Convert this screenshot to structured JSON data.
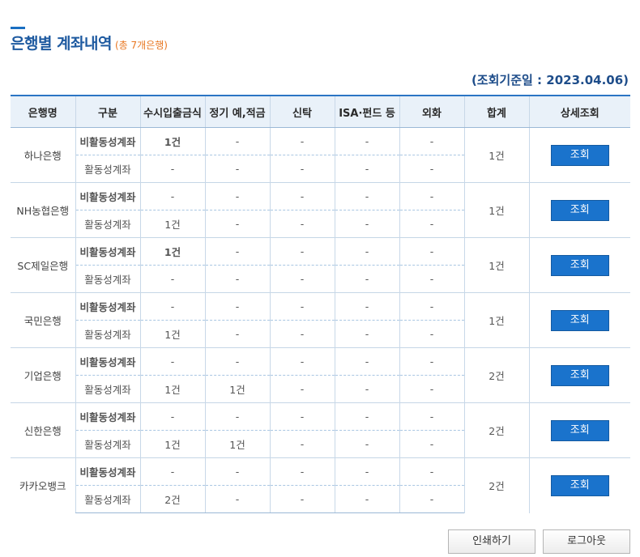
{
  "header": {
    "title": "은행별 계좌내역",
    "count_label": "(총 7개은행)",
    "basis_label": "(조회기준일 : 2023.04.06)"
  },
  "table": {
    "columns": [
      "은행명",
      "구분",
      "수시입출금식",
      "정기 예,적금",
      "신탁",
      "ISA·펀드 등",
      "외화",
      "합계",
      "상세조회"
    ],
    "button_label": "조회",
    "banks": [
      {
        "name": "하나은행",
        "total": "1건",
        "rows": [
          {
            "type": "비활동성계좌",
            "cells": [
              "1건",
              "-",
              "-",
              "-",
              "-"
            ]
          },
          {
            "type": "활동성계좌",
            "cells": [
              "-",
              "-",
              "-",
              "-",
              "-"
            ]
          }
        ]
      },
      {
        "name": "NH농협은행",
        "total": "1건",
        "rows": [
          {
            "type": "비활동성계좌",
            "cells": [
              "-",
              "-",
              "-",
              "-",
              "-"
            ]
          },
          {
            "type": "활동성계좌",
            "cells": [
              "1건",
              "-",
              "-",
              "-",
              "-"
            ]
          }
        ]
      },
      {
        "name": "SC제일은행",
        "total": "1건",
        "rows": [
          {
            "type": "비활동성계좌",
            "cells": [
              "1건",
              "-",
              "-",
              "-",
              "-"
            ]
          },
          {
            "type": "활동성계좌",
            "cells": [
              "-",
              "-",
              "-",
              "-",
              "-"
            ]
          }
        ]
      },
      {
        "name": "국민은행",
        "total": "1건",
        "rows": [
          {
            "type": "비활동성계좌",
            "cells": [
              "-",
              "-",
              "-",
              "-",
              "-"
            ]
          },
          {
            "type": "활동성계좌",
            "cells": [
              "1건",
              "-",
              "-",
              "-",
              "-"
            ]
          }
        ]
      },
      {
        "name": "기업은행",
        "total": "2건",
        "rows": [
          {
            "type": "비활동성계좌",
            "cells": [
              "-",
              "-",
              "-",
              "-",
              "-"
            ]
          },
          {
            "type": "활동성계좌",
            "cells": [
              "1건",
              "1건",
              "-",
              "-",
              "-"
            ]
          }
        ]
      },
      {
        "name": "신한은행",
        "total": "2건",
        "rows": [
          {
            "type": "비활동성계좌",
            "cells": [
              "-",
              "-",
              "-",
              "-",
              "-"
            ]
          },
          {
            "type": "활동성계좌",
            "cells": [
              "1건",
              "1건",
              "-",
              "-",
              "-"
            ]
          }
        ]
      },
      {
        "name": "카카오뱅크",
        "total": "2건",
        "rows": [
          {
            "type": "비활동성계좌",
            "cells": [
              "-",
              "-",
              "-",
              "-",
              "-"
            ]
          },
          {
            "type": "활동성계좌",
            "cells": [
              "2건",
              "-",
              "-",
              "-",
              "-"
            ]
          }
        ]
      }
    ]
  },
  "footer": {
    "print_label": "인쇄하기",
    "logout_label": "로그아웃"
  }
}
